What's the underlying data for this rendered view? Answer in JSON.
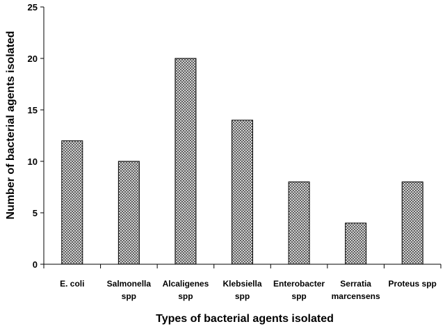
{
  "chart_data": {
    "type": "bar",
    "categories": [
      "E. coli",
      "Salmonella spp",
      "Alcaligenes spp",
      "Klebsiella spp",
      "Enterobacter spp",
      "Serratia marcensens",
      "Proteus spp"
    ],
    "category_lines": [
      [
        "E. coli"
      ],
      [
        "Salmonella",
        "spp"
      ],
      [
        "Alcaligenes",
        "spp"
      ],
      [
        "Klebsiella",
        "spp"
      ],
      [
        "Enterobacter",
        "spp"
      ],
      [
        "Serratia",
        "marcensens"
      ],
      [
        "Proteus spp"
      ]
    ],
    "values": [
      12,
      10,
      20,
      14,
      8,
      4,
      8
    ],
    "title": "",
    "xlabel": "Types of bacterial agents isolated",
    "ylabel": "Number of bacterial agents isolated",
    "ylim": [
      0,
      25
    ],
    "yticks": [
      0,
      5,
      10,
      15,
      20,
      25
    ],
    "grid": false,
    "legend": "none",
    "bar_fill": "crosshatch",
    "colors": {
      "bar_stroke": "#000000",
      "hatch_bg": "#ffffff",
      "hatch_line": "#555555",
      "axis": "#000000"
    }
  }
}
